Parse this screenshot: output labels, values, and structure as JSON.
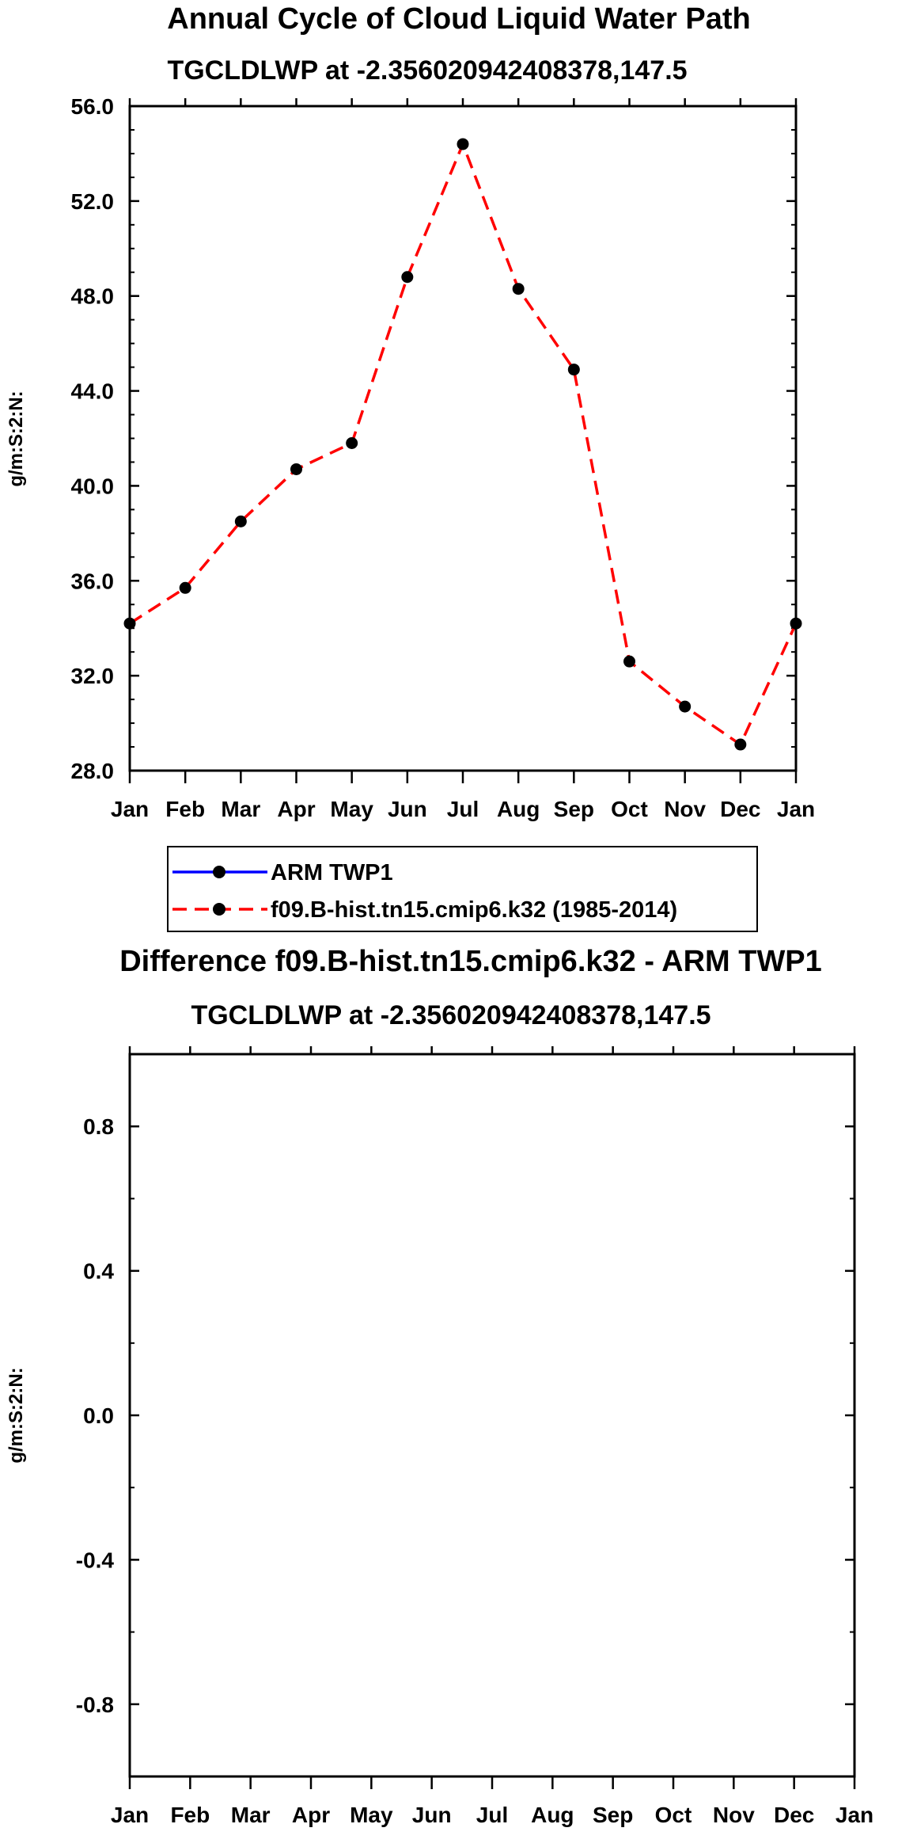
{
  "chart_data": [
    {
      "type": "line",
      "title": "Annual Cycle of Cloud Liquid Water Path",
      "subtitle": "TGCLDLWP at -2.356020942408378,147.5",
      "ylabel": "g/m:S:2:N:",
      "xlabel": "",
      "categories": [
        "Jan",
        "Feb",
        "Mar",
        "Apr",
        "May",
        "Jun",
        "Jul",
        "Aug",
        "Sep",
        "Oct",
        "Nov",
        "Dec",
        "Jan"
      ],
      "ylim": [
        28.0,
        56.0
      ],
      "yticks": [
        "28.0",
        "32.0",
        "36.0",
        "40.0",
        "44.0",
        "48.0",
        "52.0",
        "56.0"
      ],
      "series": [
        {
          "name": "f09.B-hist.tn15.cmip6.k32 (1985-2014)",
          "color": "#ff0000",
          "style": "dashed",
          "values": [
            34.2,
            35.7,
            38.5,
            40.7,
            41.8,
            48.8,
            54.4,
            48.3,
            44.9,
            32.6,
            30.7,
            29.1,
            34.2
          ]
        }
      ],
      "legend": [
        {
          "label": "ARM TWP1",
          "color": "#0000ff",
          "style": "solid"
        },
        {
          "label": "f09.B-hist.tn15.cmip6.k32 (1985-2014)",
          "color": "#ff0000",
          "style": "dashed"
        }
      ]
    },
    {
      "type": "line",
      "title": "Difference f09.B-hist.tn15.cmip6.k32 - ARM TWP1",
      "subtitle": "TGCLDLWP at -2.356020942408378,147.5",
      "ylabel": "g/m:S:2:N:",
      "xlabel": "",
      "categories": [
        "Jan",
        "Feb",
        "Mar",
        "Apr",
        "May",
        "Jun",
        "Jul",
        "Aug",
        "Sep",
        "Oct",
        "Nov",
        "Dec",
        "Jan"
      ],
      "ylim": [
        -1.0,
        1.0
      ],
      "yticks": [
        "-0.8",
        "-0.4",
        "0.0",
        "0.4",
        "0.8"
      ],
      "series": []
    }
  ]
}
